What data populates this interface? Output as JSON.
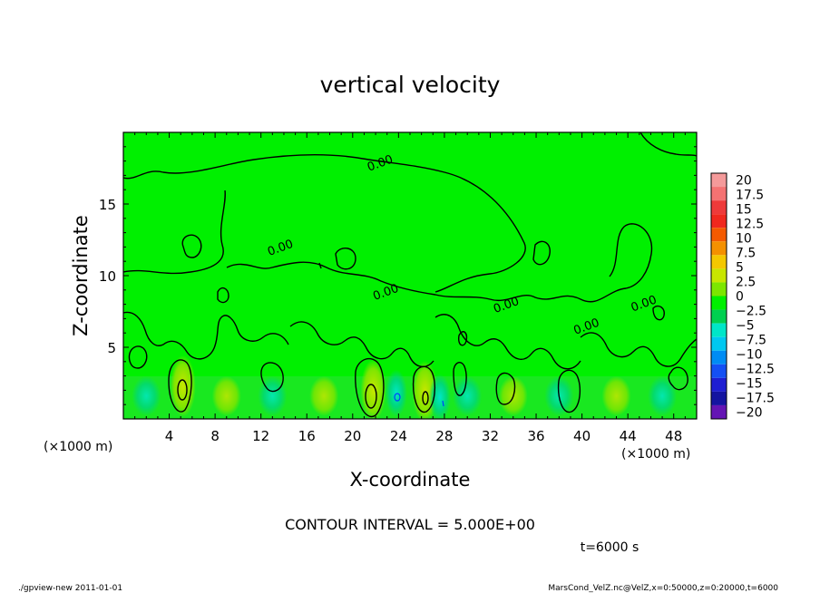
{
  "chart_data": {
    "type": "heatmap",
    "title": "vertical velocity",
    "xlabel": "X-coordinate",
    "ylabel": "Z-coordinate",
    "x_unit": "(×1000 m)",
    "y_unit": "(×1000 m)",
    "xlim": [
      0,
      50
    ],
    "ylim": [
      0,
      20
    ],
    "x_ticks": [
      4,
      8,
      12,
      16,
      20,
      24,
      28,
      32,
      36,
      40,
      44,
      48
    ],
    "y_ticks": [
      5,
      10,
      15
    ],
    "contour_interval_text": "CONTOUR INTERVAL = 5.000E+00",
    "time_text": "t=6000 s",
    "contour_labels": [
      {
        "text": "0.00",
        "x": 22.5,
        "z": 17.6
      },
      {
        "text": "0.00",
        "x": 13.8,
        "z": 11.7
      },
      {
        "text": "0.00",
        "x": 23.0,
        "z": 8.6
      },
      {
        "text": "0.00",
        "x": 33.5,
        "z": 7.7
      },
      {
        "text": "0.00",
        "x": 40.5,
        "z": 6.2
      },
      {
        "text": "0.00",
        "x": 45.5,
        "z": 7.8
      }
    ],
    "colorbar": {
      "labels": [
        "20",
        "17.5",
        "15",
        "12.5",
        "10",
        "7.5",
        "5",
        "2.5",
        "0",
        "-2.5",
        "-5",
        "-7.5",
        "-10",
        "-12.5",
        "-15",
        "-17.5",
        "-20"
      ],
      "colors": [
        "#f49a9a",
        "#f47272",
        "#ee3a3a",
        "#f0281e",
        "#f45a00",
        "#f49000",
        "#f4c800",
        "#c8e600",
        "#7de600",
        "#00f000",
        "#00d050",
        "#00e6c8",
        "#00c8f0",
        "#008cf4",
        "#1450f4",
        "#1e1ed2",
        "#1414a0",
        "#6414b4"
      ]
    },
    "features": [
      {
        "type": "updraft",
        "x": 5.2,
        "z": 2.3,
        "value": 5
      },
      {
        "type": "updraft",
        "x": 21.8,
        "z": 2.0,
        "value": 5
      },
      {
        "type": "updraft",
        "x": 26.3,
        "z": 1.9,
        "value": 5
      },
      {
        "type": "downdraft",
        "x": 23.8,
        "z": 1.8,
        "value": -5
      },
      {
        "type": "downdraft",
        "x": 27.6,
        "z": 1.5,
        "value": -5
      }
    ]
  },
  "footer": {
    "left": "./gpview-new  2011-01-01",
    "right": "MarsCond_VelZ.nc@VelZ,x=0:50000,z=0:20000,t=6000"
  }
}
